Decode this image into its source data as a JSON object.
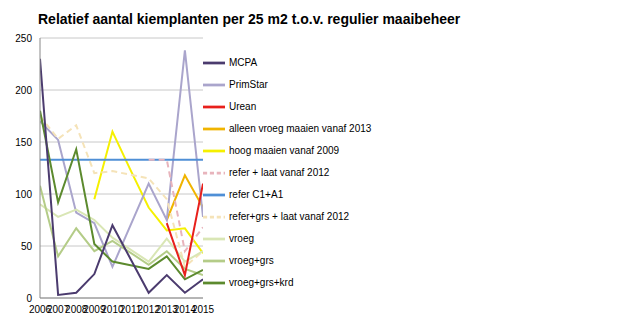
{
  "chart_data": {
    "type": "line",
    "title": "Relatief aantal kiemplanten per 25 m2 t.o.v. regulier maaibeheer",
    "x": [
      2006,
      2007,
      2008,
      2009,
      2010,
      2011,
      2012,
      2013,
      2014,
      2015
    ],
    "xlim": [
      2006,
      2015
    ],
    "xticks": [
      2006,
      2007,
      2008,
      2009,
      2010,
      2011,
      2012,
      2013,
      2014,
      2015
    ],
    "ylim": [
      0,
      250
    ],
    "yticks": [
      0,
      50,
      100,
      150,
      200,
      250
    ],
    "grid": true,
    "legend": "right",
    "series": [
      {
        "name": "alleen vroeg maaien vanaf 2013",
        "color": "#f0b400",
        "values": [
          null,
          null,
          null,
          null,
          null,
          null,
          null,
          75,
          118,
          87
        ]
      },
      {
        "name": "hoog maaien vanaf 2009",
        "color": "#f5f000",
        "values": [
          null,
          null,
          null,
          95,
          160,
          123,
          87,
          65,
          67,
          43
        ]
      },
      {
        "name": "PrimStar",
        "color": "#aaa5cc",
        "values": [
          170,
          152,
          82,
          72,
          30,
          null,
          110,
          75,
          238,
          78
        ]
      },
      {
        "name": "refer C1+A1",
        "color": "#4f8fd6",
        "values": [
          133,
          133,
          133,
          133,
          133,
          133,
          133,
          133,
          133,
          133
        ]
      },
      {
        "name": "refer + laat vanaf 2012",
        "color": "#e8b4bc",
        "line_style": "dashed",
        "values": [
          null,
          null,
          null,
          null,
          null,
          null,
          133,
          133,
          45,
          68
        ]
      },
      {
        "name": "refer+grs + laat vanaf 2012",
        "color": "#f5e3b8",
        "line_style": "dashed",
        "values": [
          175,
          153,
          166,
          120,
          122,
          null,
          115,
          95,
          30,
          45
        ]
      },
      {
        "name": "vroeg",
        "color": "#d9e6b5",
        "values": [
          90,
          78,
          85,
          75,
          58,
          null,
          35,
          57,
          35,
          45
        ]
      },
      {
        "name": "vroeg+grs",
        "color": "#b4cc88",
        "values": [
          108,
          40,
          67,
          45,
          55,
          null,
          32,
          45,
          28,
          22
        ]
      },
      {
        "name": "vroeg+grs+krd",
        "color": "#5c8a2e",
        "values": [
          180,
          92,
          143,
          52,
          35,
          null,
          28,
          40,
          18,
          27
        ]
      },
      {
        "name": "MCPA",
        "color": "#4b3b6e",
        "values": [
          230,
          3,
          5,
          23,
          70,
          null,
          5,
          22,
          5,
          18
        ]
      },
      {
        "name": "Urean",
        "color": "#e8201c",
        "values": [
          null,
          null,
          null,
          null,
          null,
          null,
          null,
          72,
          22,
          110
        ]
      }
    ]
  }
}
